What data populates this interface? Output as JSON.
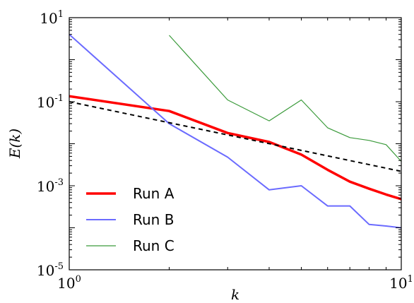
{
  "chart_data": {
    "type": "line",
    "xlabel": "E(k)",
    "xlabel_x": "k",
    "ylabel": "E(k)",
    "xscale": "log",
    "yscale": "log",
    "xlim": [
      1,
      10
    ],
    "ylim": [
      1e-05,
      10
    ],
    "grid": false,
    "legend_position": "lower-left",
    "x_ticks": [
      {
        "base": "10",
        "exp": "0"
      },
      {
        "base": "10",
        "exp": "1"
      }
    ],
    "y_ticks": [
      {
        "base": "10",
        "exp": "-5"
      },
      {
        "base": "10",
        "exp": "-3"
      },
      {
        "base": "10",
        "exp": "-1"
      },
      {
        "base": "10",
        "exp": "1"
      }
    ],
    "series": [
      {
        "name": "Run A",
        "color": "#ff0000",
        "width": 3.5,
        "dash": "",
        "legend": true,
        "x": [
          1,
          2,
          3,
          4,
          5,
          6,
          7,
          8,
          9,
          10
        ],
        "y": [
          0.135,
          0.06,
          0.018,
          0.011,
          0.0055,
          0.0024,
          0.00125,
          0.00085,
          0.00062,
          0.00048
        ]
      },
      {
        "name": "Run B",
        "color": "#6b6bff",
        "width": 2,
        "dash": "",
        "legend": true,
        "x": [
          1,
          2,
          3,
          4,
          5,
          6,
          7,
          8,
          9,
          10
        ],
        "y": [
          4.0,
          0.03,
          0.0048,
          0.0008,
          0.001,
          0.00033,
          0.00033,
          0.00012,
          0.00011,
          0.0001
        ]
      },
      {
        "name": "Run C",
        "color": "#3a9a3a",
        "width": 1.2,
        "dash": "",
        "legend": true,
        "x": [
          2,
          3,
          4,
          5,
          6,
          7,
          8,
          9,
          10
        ],
        "y": [
          3.8,
          0.11,
          0.035,
          0.11,
          0.024,
          0.014,
          0.012,
          0.0095,
          0.0038
        ]
      },
      {
        "name": "",
        "color": "#000000",
        "width": 2,
        "dash": "6,5",
        "legend": false,
        "x": [
          1,
          10
        ],
        "y": [
          0.1,
          0.0022
        ]
      }
    ]
  }
}
